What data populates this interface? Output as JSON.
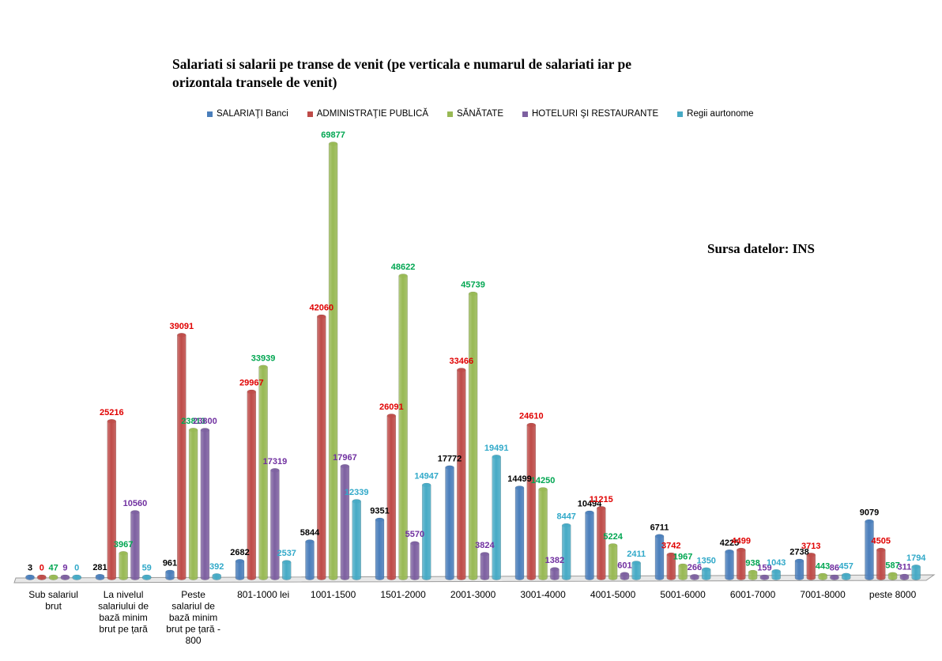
{
  "chart_data": {
    "type": "bar",
    "title": "Salariati si salarii pe transe de venit (pe verticala e numarul de salariati iar pe orizontala transele de venit)",
    "source_note": "Sursa datelor: INS",
    "categories": [
      [
        "Sub salariul",
        "brut"
      ],
      [
        "La nivelul",
        "salariului de",
        "bază minim",
        "brut pe țară"
      ],
      [
        "Peste",
        "salariul de",
        "bază minim",
        "brut pe țară -",
        "800"
      ],
      [
        "801-1000 lei"
      ],
      [
        "1001-1500"
      ],
      [
        "1501-2000"
      ],
      [
        "2001-3000"
      ],
      [
        "3001-4000"
      ],
      [
        "4001-5000"
      ],
      [
        "5001-6000"
      ],
      [
        "6001-7000"
      ],
      [
        "7001-8000"
      ],
      [
        "peste 8000"
      ]
    ],
    "ylim": [
      0,
      70000
    ],
    "legend_position": "top",
    "grid": false,
    "series": [
      {
        "name": "SALARIAŢI Banci",
        "color": "#4a7ebb",
        "label_color": "#000000",
        "values": [
          3,
          281,
          961,
          2682,
          5844,
          9351,
          17772,
          14499,
          10494,
          6711,
          4225,
          2738,
          9079
        ]
      },
      {
        "name": "ADMINISTRAŢIE PUBLICĂ",
        "color": "#be4b48",
        "label_color": "#e00000",
        "values": [
          0,
          25216,
          39091,
          29967,
          42060,
          26091,
          33466,
          24610,
          11215,
          3742,
          4499,
          3713,
          4505
        ]
      },
      {
        "name": "SĂNĂTATE",
        "color": "#98b954",
        "label_color": "#00a651",
        "values": [
          47,
          3967,
          23813,
          33939,
          69877,
          48622,
          45739,
          14250,
          5224,
          1967,
          938,
          443,
          587
        ]
      },
      {
        "name": "HOTELURI ŞI RESTAURANTE",
        "color": "#7d60a0",
        "label_color": "#7030a0",
        "values": [
          9,
          10560,
          23800,
          17319,
          17967,
          5570,
          3824,
          1382,
          601,
          266,
          159,
          86,
          311
        ]
      },
      {
        "name": "Regii aurtonome",
        "color": "#46aac5",
        "label_color": "#31a9c9",
        "values": [
          0,
          59,
          392,
          2537,
          12339,
          14947,
          19491,
          8447,
          2411,
          1350,
          1043,
          457,
          1794
        ]
      }
    ]
  }
}
